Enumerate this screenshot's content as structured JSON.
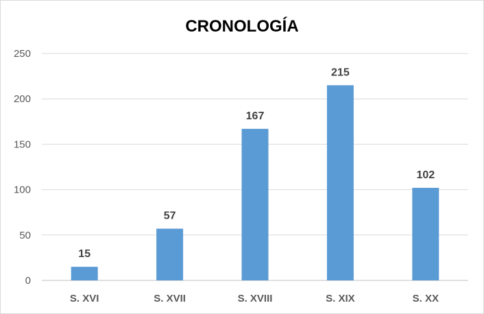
{
  "chart_data": {
    "type": "bar",
    "title": "CRONOLOGÍA",
    "categories": [
      "S. XVI",
      "S. XVII",
      "S. XVIII",
      "S. XIX",
      "S. XX"
    ],
    "values": [
      15,
      57,
      167,
      215,
      102
    ],
    "ylim": [
      0,
      250
    ],
    "yticks": [
      0,
      50,
      100,
      150,
      200,
      250
    ],
    "grid": true,
    "legend": "none",
    "bar_color": "#5b9bd5"
  }
}
